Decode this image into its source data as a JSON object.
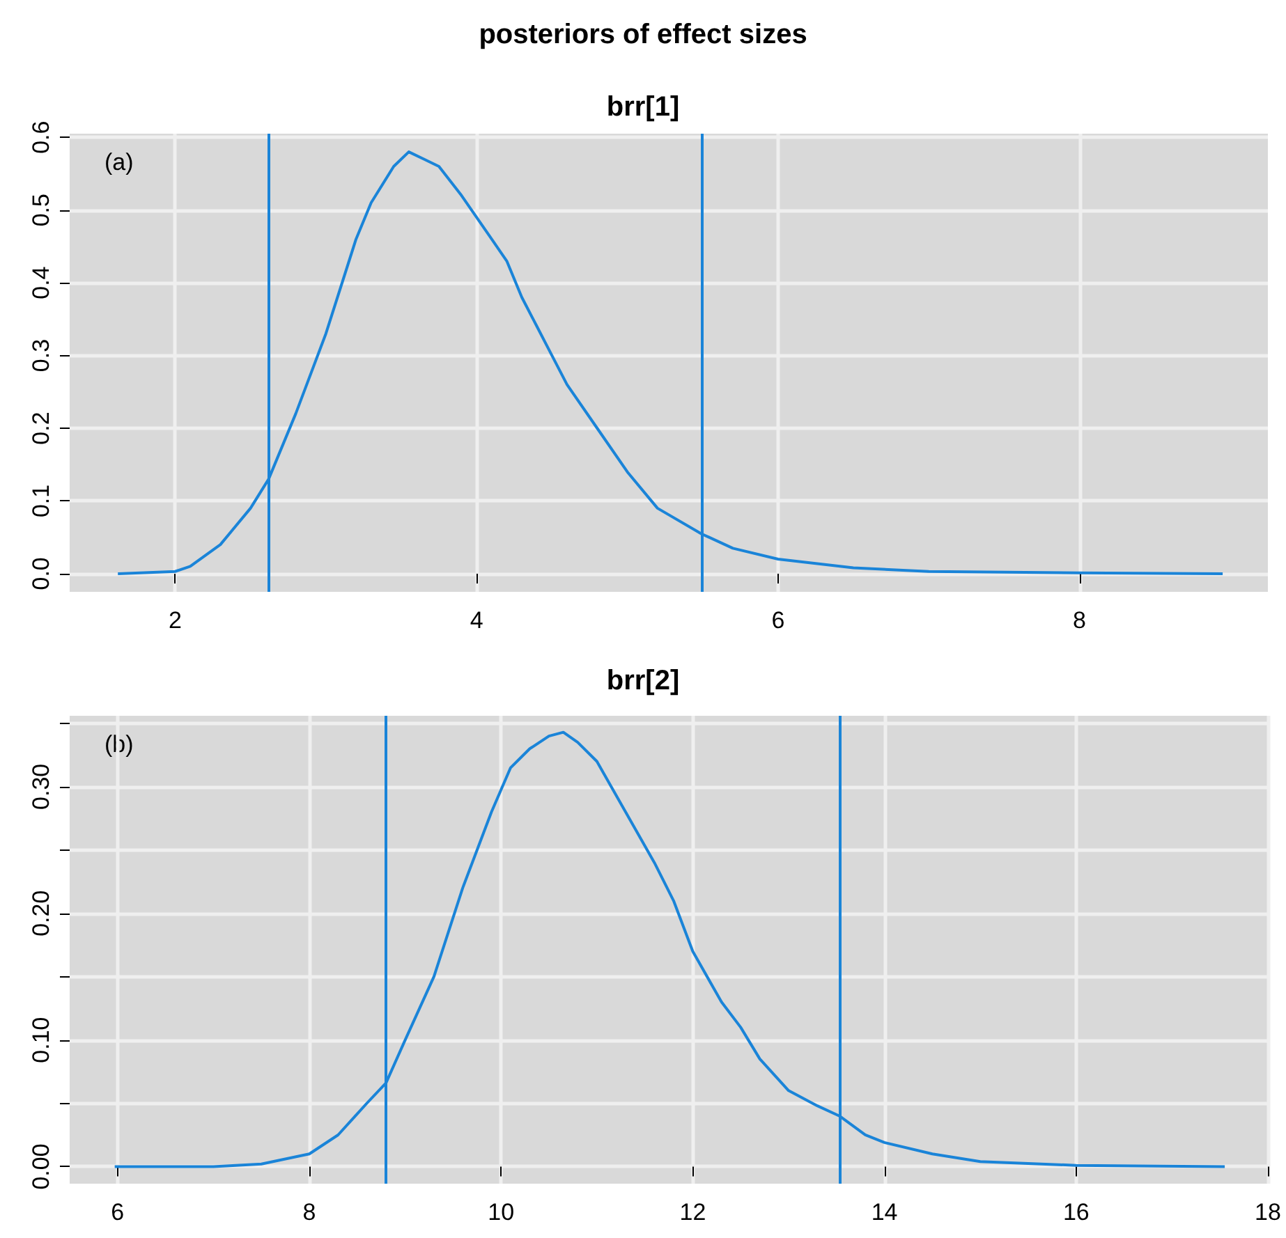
{
  "chart_data": [
    {
      "type": "line",
      "title": "posteriors of effect sizes",
      "subtitle": "brr[1]",
      "annotations": [
        "(a)"
      ],
      "series": [
        {
          "color": "#1a84d8",
          "x": [
            1.62,
            2.0,
            2.1,
            2.3,
            2.5,
            2.62,
            2.8,
            3.0,
            3.2,
            3.3,
            3.45,
            3.55,
            3.65,
            3.75,
            3.9,
            4.0,
            4.1,
            4.2,
            4.3,
            4.4,
            4.5,
            4.6,
            4.8,
            5.0,
            5.2,
            5.49,
            5.7,
            6.0,
            6.5,
            7.0,
            8.0,
            8.95
          ],
          "values": [
            0,
            0.003,
            0.01,
            0.04,
            0.09,
            0.13,
            0.22,
            0.33,
            0.46,
            0.51,
            0.56,
            0.58,
            0.57,
            0.56,
            0.52,
            0.49,
            0.46,
            0.43,
            0.38,
            0.34,
            0.3,
            0.26,
            0.2,
            0.14,
            0.09,
            0.055,
            0.035,
            0.02,
            0.008,
            0.003,
            0.001,
            0
          ]
        }
      ],
      "xlim": [
        1.3,
        9.25
      ],
      "xticks": [
        2,
        4,
        6,
        8
      ],
      "ylim": [
        -0.025,
        0.605
      ],
      "yticks": [
        {
          "value": 0,
          "label": "0.0"
        },
        0.1,
        0.2,
        0.3,
        0.4,
        0.5,
        0.6
      ],
      "ref_lines": [
        {
          "axis": "x",
          "value": 2.62,
          "color": "#1a84d8"
        },
        {
          "axis": "x",
          "value": 5.49,
          "color": "#1a84d8"
        }
      ],
      "grid": true,
      "marker": "none",
      "line_style": "solid"
    },
    {
      "type": "line",
      "title": "brr[2]",
      "annotations": [
        "(b)"
      ],
      "series": [
        {
          "color": "#1a84d8",
          "x": [
            5.97,
            7.0,
            7.5,
            8.0,
            8.3,
            8.6,
            8.8,
            9.0,
            9.3,
            9.6,
            9.9,
            10.1,
            10.3,
            10.5,
            10.65,
            10.8,
            11.0,
            11.3,
            11.6,
            11.8,
            12.0,
            12.3,
            12.5,
            12.7,
            13.0,
            13.3,
            13.53,
            13.8,
            14.0,
            14.5,
            15.0,
            16.0,
            17.55
          ],
          "values": [
            0,
            0,
            0.002,
            0.01,
            0.025,
            0.05,
            0.066,
            0.1,
            0.15,
            0.22,
            0.28,
            0.315,
            0.33,
            0.34,
            0.343,
            0.335,
            0.32,
            0.28,
            0.24,
            0.21,
            0.17,
            0.13,
            0.11,
            0.085,
            0.06,
            0.048,
            0.04,
            0.025,
            0.019,
            0.01,
            0.004,
            0.001,
            0
          ]
        }
      ],
      "xlim": [
        5.5,
        18
      ],
      "xticks": [
        6,
        8,
        10,
        12,
        14,
        16,
        18
      ],
      "ylim": [
        -0.0135,
        0.356
      ],
      "yticks": [
        {
          "value": 0,
          "label": "0.00"
        },
        {
          "value": 0.05,
          "label": null
        },
        {
          "value": 0.1,
          "label": "0.10"
        },
        {
          "value": 0.15,
          "label": null
        },
        {
          "value": 0.2,
          "label": "0.20"
        },
        {
          "value": 0.25,
          "label": null
        },
        {
          "value": 0.3,
          "label": "0.30"
        },
        {
          "value": 0.35,
          "label": null
        }
      ],
      "ref_lines": [
        {
          "axis": "x",
          "value": 8.8,
          "color": "#1a84d8"
        },
        {
          "axis": "x",
          "value": 13.53,
          "color": "#1a84d8"
        }
      ],
      "grid": true,
      "marker": "none",
      "line_style": "solid"
    }
  ]
}
